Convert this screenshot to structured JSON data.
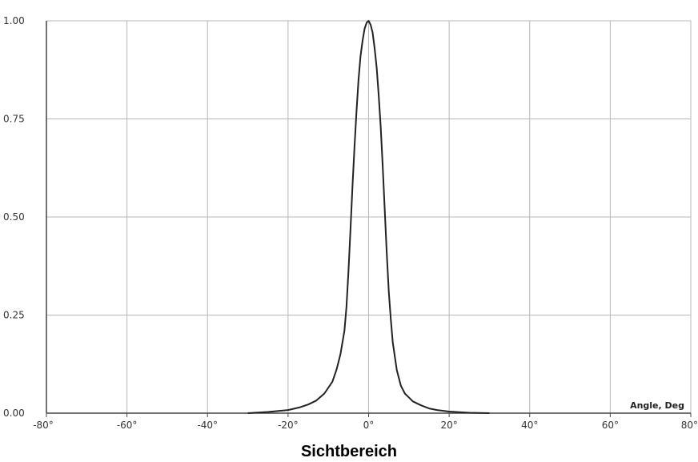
{
  "chart_data": {
    "type": "line",
    "title": "",
    "xlabel": "",
    "ylabel": "",
    "xlim": [
      -80,
      80
    ],
    "ylim": [
      0,
      1
    ],
    "grid": true,
    "x_tick_values": [
      -80,
      -60,
      -40,
      -20,
      0,
      20,
      40,
      60,
      80
    ],
    "x_tick_labels": [
      "-80°",
      "-60°",
      "-40°",
      "-20°",
      "0°",
      "20°",
      "40°",
      "60°",
      "80°"
    ],
    "y_tick_values": [
      0,
      0.25,
      0.5,
      0.75,
      1.0
    ],
    "y_tick_labels": [
      "0.00",
      "0.25",
      "0.50",
      "0.75",
      "1.00"
    ],
    "annotation": "Angle, Deg",
    "series": [
      {
        "color": "#222222",
        "x": [
          -30,
          -25,
          -20,
          -17,
          -15,
          -13,
          -11,
          -9,
          -8,
          -7,
          -6,
          -5.5,
          -5,
          -4.5,
          -4,
          -3.5,
          -3,
          -2.5,
          -2,
          -1.5,
          -1,
          -0.5,
          0,
          0.5,
          1,
          1.5,
          2,
          2.5,
          3,
          3.5,
          4,
          4.5,
          5,
          5.5,
          6,
          7,
          8,
          9,
          11,
          13,
          15,
          17,
          20,
          25,
          30
        ],
        "y": [
          0.0,
          0.003,
          0.008,
          0.015,
          0.022,
          0.032,
          0.05,
          0.08,
          0.11,
          0.15,
          0.21,
          0.27,
          0.36,
          0.47,
          0.58,
          0.68,
          0.77,
          0.85,
          0.91,
          0.95,
          0.98,
          0.995,
          1.0,
          0.99,
          0.97,
          0.93,
          0.88,
          0.81,
          0.73,
          0.63,
          0.52,
          0.41,
          0.31,
          0.24,
          0.18,
          0.11,
          0.07,
          0.05,
          0.03,
          0.02,
          0.012,
          0.008,
          0.004,
          0.001,
          0.0
        ]
      }
    ]
  },
  "caption": "Sichtbereich"
}
